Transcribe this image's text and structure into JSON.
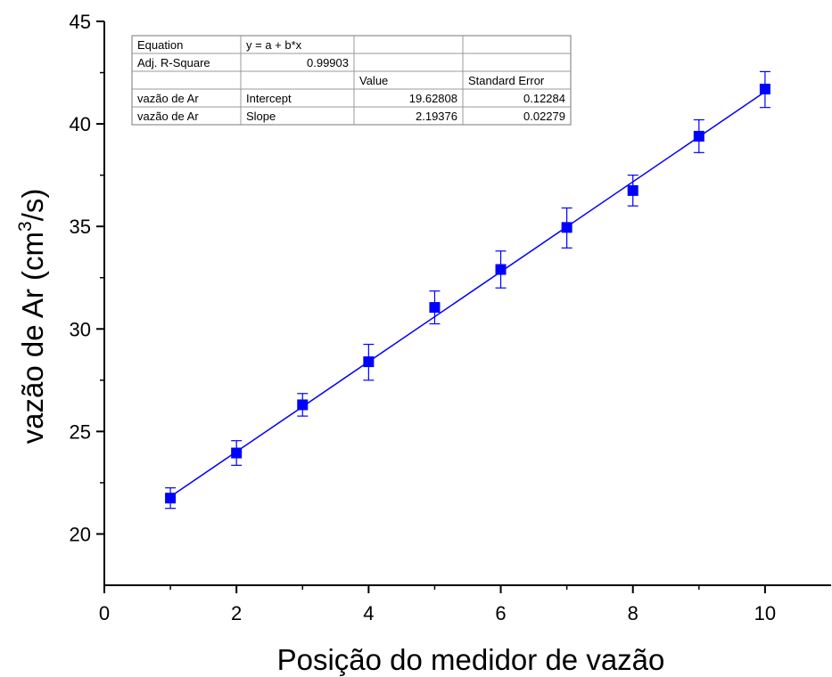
{
  "chart_data": {
    "type": "scatter",
    "xlabel": "Posição do medidor de vazão",
    "ylabel_base": "vazão de Ar (cm",
    "ylabel_sup": "3",
    "ylabel_end": "/s)",
    "xlim": [
      0,
      11
    ],
    "ylim": [
      17.5,
      45
    ],
    "x_ticks": [
      "0",
      "2",
      "4",
      "6",
      "8",
      "10"
    ],
    "y_ticks": [
      "20",
      "25",
      "30",
      "35",
      "40",
      "45"
    ],
    "grid": false,
    "colors": {
      "series": "#0000ff",
      "axis": "#000000"
    },
    "series": [
      {
        "marker": "square",
        "x": [
          1,
          2,
          3,
          4,
          5,
          6,
          7,
          8,
          9,
          10
        ],
        "y": [
          21.75,
          23.95,
          26.3,
          28.4,
          31.05,
          32.9,
          34.95,
          36.75,
          39.4,
          41.7
        ],
        "err_low": [
          0.5,
          0.6,
          0.55,
          0.9,
          0.8,
          0.9,
          1.0,
          0.75,
          0.8,
          0.9
        ],
        "err_high": [
          0.5,
          0.6,
          0.55,
          0.85,
          0.8,
          0.9,
          0.95,
          0.75,
          0.8,
          0.85
        ]
      }
    ],
    "fit": {
      "intercept": 19.62808,
      "slope": 2.19376,
      "x_range": [
        1,
        10
      ]
    },
    "fit_table": {
      "rows": [
        [
          "Equation",
          "y = a + b*x",
          "",
          ""
        ],
        [
          "Adj. R-Square",
          "0.99903",
          "",
          ""
        ],
        [
          "",
          "",
          "Value",
          "Standard Error"
        ],
        [
          "vazão de Ar",
          "Intercept",
          "19.62808",
          "0.12284"
        ],
        [
          "vazão de Ar",
          "Slope",
          "2.19376",
          "0.02279"
        ]
      ]
    }
  }
}
